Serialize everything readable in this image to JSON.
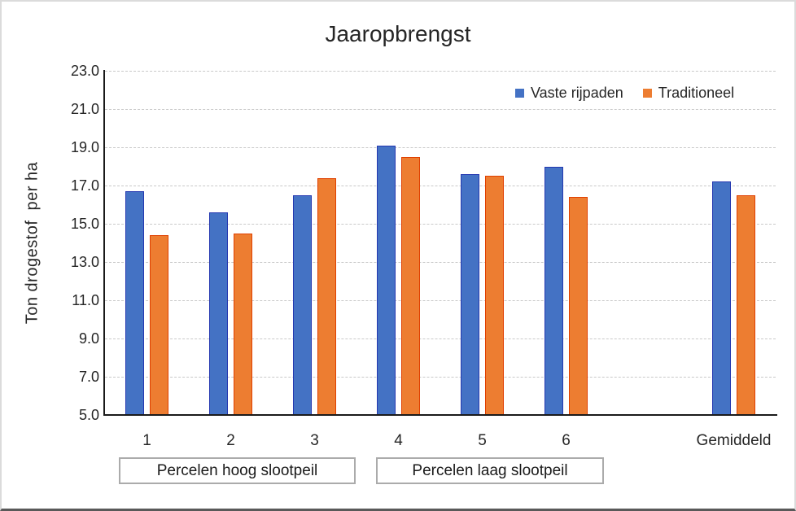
{
  "chart_data": {
    "type": "bar",
    "title": "Jaaropbrengst",
    "ylabel": "Ton drogestof  per ha",
    "categories": [
      "1",
      "2",
      "3",
      "4",
      "5",
      "6",
      "",
      "Gemiddeld"
    ],
    "series": [
      {
        "name": "Vaste rijpaden",
        "color": "#4472C4",
        "border_color": "#2438B0",
        "values": [
          16.7,
          15.6,
          16.5,
          19.1,
          17.6,
          18.0,
          null,
          17.2
        ]
      },
      {
        "name": "Traditioneel",
        "color": "#ED7D31",
        "border_color": "#E04000",
        "values": [
          14.4,
          14.5,
          17.4,
          18.5,
          17.5,
          16.4,
          null,
          16.5
        ]
      }
    ],
    "ylim": [
      5,
      23
    ],
    "ytick_step": 2,
    "ytick_labels": [
      "23.0",
      "21.0",
      "19.0",
      "17.0",
      "15.0",
      "13.0",
      "11.0",
      "9.0",
      "7.0",
      "5.0"
    ],
    "grid": true,
    "legend_position": "top-right",
    "group_boxes": [
      {
        "label": "Percelen hoog slootpeil"
      },
      {
        "label": "Percelen laag slootpeil"
      }
    ]
  }
}
